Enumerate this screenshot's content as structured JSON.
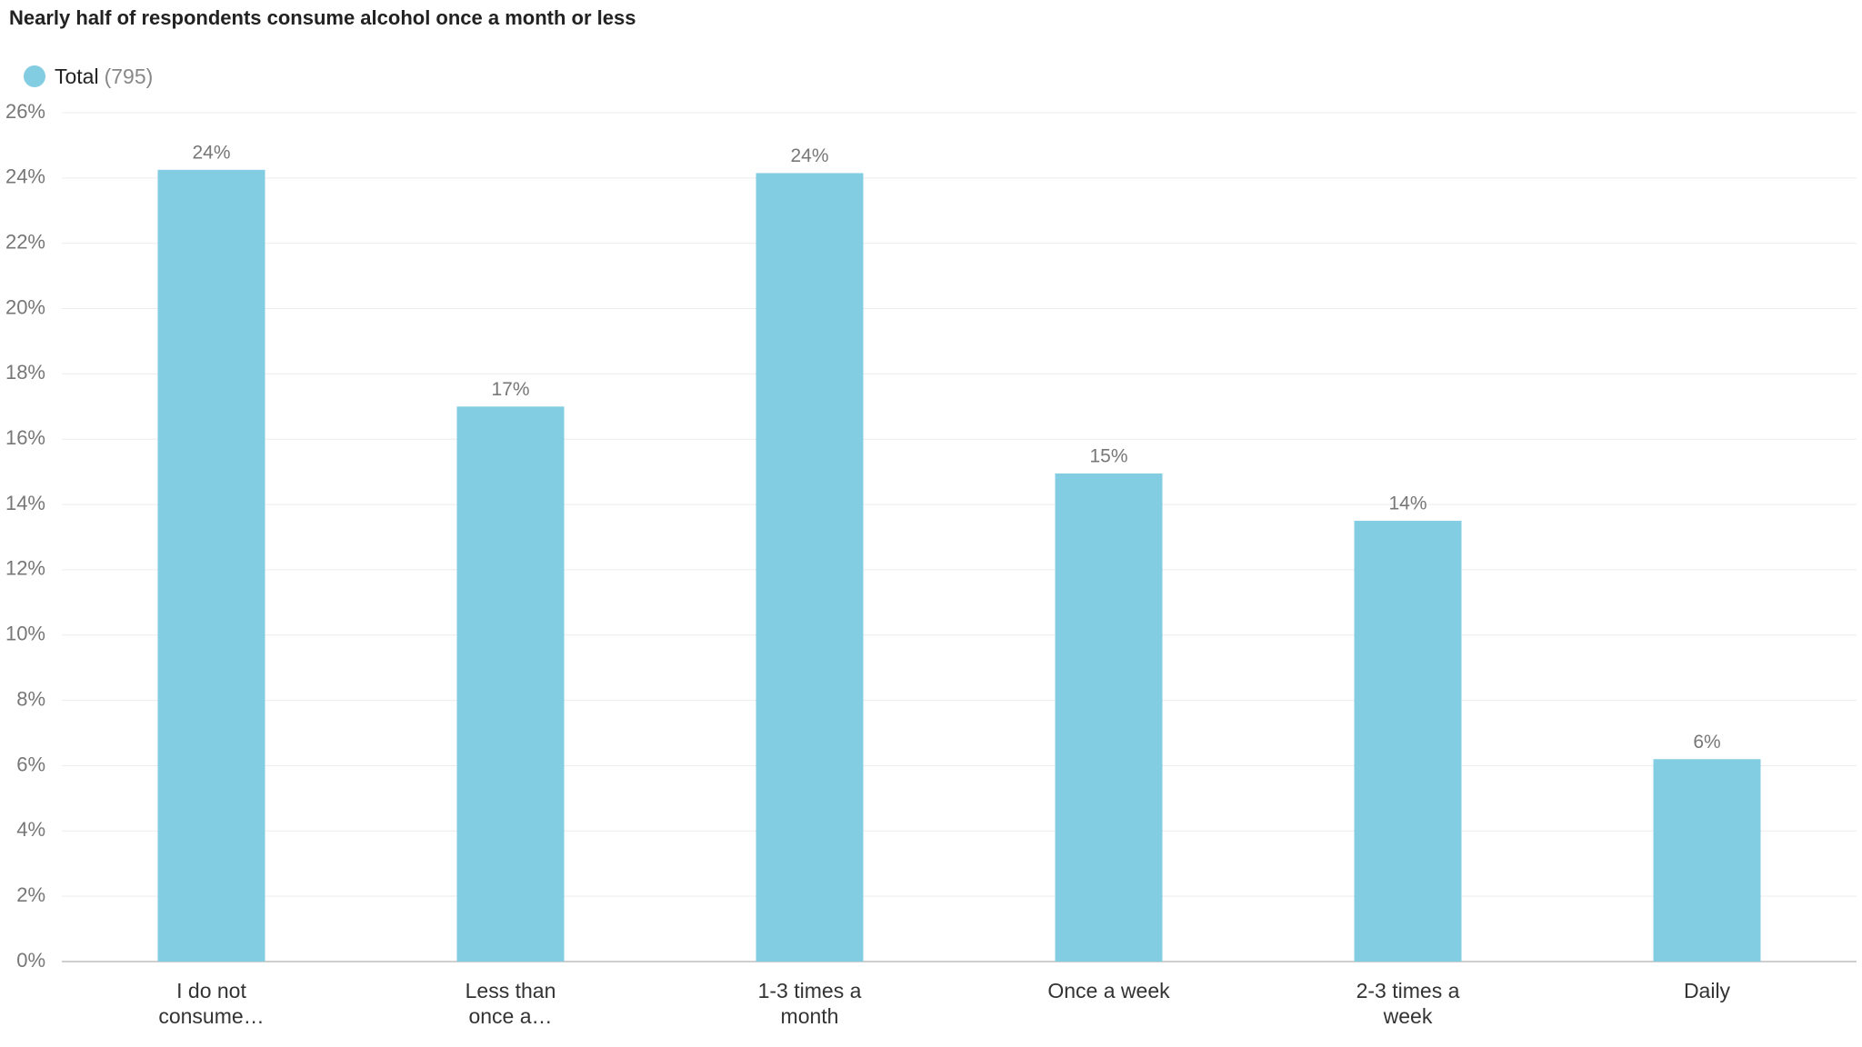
{
  "chart_data": {
    "type": "bar",
    "title": "Nearly half of respondents consume alcohol once a month or less",
    "categories": [
      "I do not consume…",
      "Less than once a…",
      "1-3 times a month",
      "Once a week",
      "2-3 times a week",
      "Daily"
    ],
    "series": [
      {
        "name": "Total",
        "count_label": "(795)",
        "color": "#83cde3",
        "values": [
          24.25,
          17.0,
          24.15,
          14.95,
          13.5,
          6.2
        ],
        "value_labels": [
          "24%",
          "17%",
          "24%",
          "15%",
          "14%",
          "6%"
        ]
      }
    ],
    "ylim": [
      0,
      26
    ],
    "yticks": [
      {
        "value": 0,
        "label": "0%"
      },
      {
        "value": 2,
        "label": "2%"
      },
      {
        "value": 4,
        "label": "4%"
      },
      {
        "value": 6,
        "label": "6%"
      },
      {
        "value": 8,
        "label": "8%"
      },
      {
        "value": 10,
        "label": "10%"
      },
      {
        "value": 12,
        "label": "12%"
      },
      {
        "value": 14,
        "label": "14%"
      },
      {
        "value": 16,
        "label": "16%"
      },
      {
        "value": 18,
        "label": "18%"
      },
      {
        "value": 20,
        "label": "20%"
      },
      {
        "value": 22,
        "label": "22%"
      },
      {
        "value": 24,
        "label": "24%"
      },
      {
        "value": 26,
        "label": "26%"
      }
    ],
    "grid": true
  }
}
